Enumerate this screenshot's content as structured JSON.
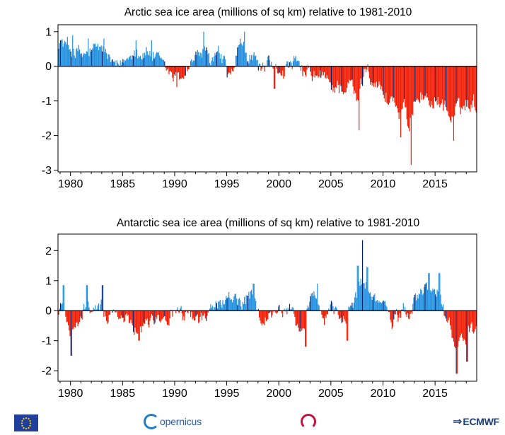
{
  "chart_data": [
    {
      "type": "bar",
      "title": "Arctic sea ice area (millions of sq km) relative to 1981-2010",
      "xlabel": "",
      "ylabel": "",
      "xlim": [
        1978.8,
        2019.0
      ],
      "ylim": [
        -3.05,
        1.2
      ],
      "x_ticks": [
        1980,
        1985,
        1990,
        1995,
        2000,
        2005,
        2010,
        2015
      ],
      "y_ticks": [
        1,
        0,
        -1,
        -2,
        -3
      ],
      "grid": false,
      "legend": "none",
      "colors": {
        "positive": "#1f8fe0",
        "negative": "#f21a00",
        "january": "#00206e"
      },
      "anomaly_anchors": [
        [
          1978.9,
          0.75
        ],
        [
          1979.5,
          0.6
        ],
        [
          1980.0,
          0.5
        ],
        [
          1980.5,
          0.45
        ],
        [
          1981.0,
          0.3
        ],
        [
          1981.5,
          0.35
        ],
        [
          1982.0,
          0.4
        ],
        [
          1982.5,
          0.5
        ],
        [
          1983.0,
          0.55
        ],
        [
          1983.5,
          0.35
        ],
        [
          1984.0,
          0.05
        ],
        [
          1984.5,
          -0.1
        ],
        [
          1985.0,
          0.1
        ],
        [
          1985.5,
          0.25
        ],
        [
          1986.0,
          0.55
        ],
        [
          1986.5,
          0.4
        ],
        [
          1987.0,
          0.35
        ],
        [
          1987.5,
          0.4
        ],
        [
          1988.0,
          0.3
        ],
        [
          1988.5,
          0.1
        ],
        [
          1989.0,
          -0.05
        ],
        [
          1989.5,
          -0.2
        ],
        [
          1990.0,
          -0.3
        ],
        [
          1990.5,
          -0.35
        ],
        [
          1991.0,
          -0.15
        ],
        [
          1991.5,
          0.1
        ],
        [
          1992.0,
          0.25
        ],
        [
          1992.5,
          0.45
        ],
        [
          1993.0,
          0.3
        ],
        [
          1993.5,
          0.15
        ],
        [
          1994.0,
          0.3
        ],
        [
          1994.5,
          0.25
        ],
        [
          1995.0,
          -0.2
        ],
        [
          1995.5,
          -0.3
        ],
        [
          1996.0,
          0.35
        ],
        [
          1996.5,
          0.6
        ],
        [
          1997.0,
          0.2
        ],
        [
          1997.5,
          0.25
        ],
        [
          1998.0,
          0.1
        ],
        [
          1998.5,
          -0.1
        ],
        [
          1999.0,
          0.05
        ],
        [
          1999.5,
          -0.2
        ],
        [
          2000.0,
          -0.1
        ],
        [
          2000.5,
          -0.1
        ],
        [
          2001.0,
          0.0
        ],
        [
          2001.5,
          0.1
        ],
        [
          2002.0,
          -0.1
        ],
        [
          2002.5,
          -0.25
        ],
        [
          2003.0,
          -0.2
        ],
        [
          2003.5,
          -0.3
        ],
        [
          2004.0,
          -0.35
        ],
        [
          2004.5,
          -0.35
        ],
        [
          2005.0,
          -0.55
        ],
        [
          2005.5,
          -0.6
        ],
        [
          2006.0,
          -0.55
        ],
        [
          2006.5,
          -0.65
        ],
        [
          2007.0,
          -0.5
        ],
        [
          2007.5,
          -1.1
        ],
        [
          2008.0,
          -0.4
        ],
        [
          2008.5,
          0.1
        ],
        [
          2009.0,
          -0.4
        ],
        [
          2009.5,
          -0.5
        ],
        [
          2010.0,
          -0.8
        ],
        [
          2010.5,
          -1.0
        ],
        [
          2011.0,
          -0.9
        ],
        [
          2011.5,
          -1.4
        ],
        [
          2012.0,
          -1.1
        ],
        [
          2012.5,
          -2.0
        ],
        [
          2013.0,
          -0.9
        ],
        [
          2013.5,
          -0.8
        ],
        [
          2014.0,
          -0.9
        ],
        [
          2014.5,
          -1.0
        ],
        [
          2015.0,
          -1.0
        ],
        [
          2015.5,
          -1.1
        ],
        [
          2016.0,
          -1.1
        ],
        [
          2016.5,
          -1.6
        ],
        [
          2017.0,
          -1.3
        ],
        [
          2017.5,
          -1.2
        ],
        [
          2018.0,
          -1.1
        ],
        [
          2018.5,
          -1.0
        ],
        [
          2018.9,
          -1.1
        ]
      ],
      "peaks": [
        [
          1979.7,
          0.85
        ],
        [
          1980.2,
          0.9
        ],
        [
          1981.7,
          0.8
        ],
        [
          1983.2,
          0.8
        ],
        [
          1986.3,
          0.75
        ],
        [
          1987.8,
          0.75
        ],
        [
          1990.2,
          -0.6
        ],
        [
          1992.8,
          1.0
        ],
        [
          1996.7,
          1.0
        ],
        [
          1999.6,
          -0.65
        ],
        [
          2007.7,
          -1.85
        ],
        [
          2011.7,
          -2.05
        ],
        [
          2012.7,
          -2.85
        ],
        [
          2016.8,
          -2.15
        ]
      ]
    },
    {
      "type": "bar",
      "title": "Antarctic sea ice area (millions of sq km) relative to 1981-2010",
      "xlabel": "",
      "ylabel": "",
      "xlim": [
        1978.8,
        2019.0
      ],
      "ylim": [
        -2.35,
        2.55
      ],
      "x_ticks": [
        1980,
        1985,
        1990,
        1995,
        2000,
        2005,
        2010,
        2015
      ],
      "y_ticks": [
        2,
        1,
        0,
        -1,
        -2
      ],
      "grid": false,
      "legend": "none",
      "colors": {
        "positive": "#1f8fe0",
        "negative": "#f21a00",
        "january": "#00206e"
      },
      "anomaly_anchors": [
        [
          1978.9,
          -0.1
        ],
        [
          1979.3,
          0.4
        ],
        [
          1979.7,
          -0.3
        ],
        [
          1980.0,
          -0.7
        ],
        [
          1980.5,
          -0.6
        ],
        [
          1981.0,
          -0.3
        ],
        [
          1981.5,
          0.2
        ],
        [
          1982.0,
          0.1
        ],
        [
          1982.5,
          -0.1
        ],
        [
          1983.0,
          0.2
        ],
        [
          1983.5,
          -0.2
        ],
        [
          1984.0,
          -0.1
        ],
        [
          1984.5,
          -0.2
        ],
        [
          1985.0,
          -0.1
        ],
        [
          1985.5,
          -0.3
        ],
        [
          1986.0,
          -0.5
        ],
        [
          1986.5,
          -0.6
        ],
        [
          1987.0,
          -0.4
        ],
        [
          1987.5,
          -0.3
        ],
        [
          1988.0,
          -0.2
        ],
        [
          1988.5,
          -0.1
        ],
        [
          1989.0,
          -0.3
        ],
        [
          1989.5,
          -0.2
        ],
        [
          1990.0,
          -0.15
        ],
        [
          1990.5,
          -0.1
        ],
        [
          1991.0,
          -0.2
        ],
        [
          1991.5,
          -0.1
        ],
        [
          1992.0,
          -0.3
        ],
        [
          1992.5,
          -0.15
        ],
        [
          1993.0,
          -0.35
        ],
        [
          1993.5,
          0.1
        ],
        [
          1994.0,
          0.2
        ],
        [
          1994.5,
          0.25
        ],
        [
          1995.0,
          0.35
        ],
        [
          1995.5,
          0.5
        ],
        [
          1996.0,
          0.3
        ],
        [
          1996.5,
          0.2
        ],
        [
          1997.0,
          0.4
        ],
        [
          1997.5,
          0.5
        ],
        [
          1998.0,
          -0.2
        ],
        [
          1998.5,
          -0.35
        ],
        [
          1999.0,
          -0.2
        ],
        [
          1999.5,
          -0.1
        ],
        [
          2000.0,
          0.1
        ],
        [
          2000.5,
          -0.1
        ],
        [
          2001.0,
          0.2
        ],
        [
          2001.5,
          -0.3
        ],
        [
          2002.0,
          -0.5
        ],
        [
          2002.5,
          -0.6
        ],
        [
          2003.0,
          0.3
        ],
        [
          2003.5,
          0.4
        ],
        [
          2004.0,
          -0.2
        ],
        [
          2004.5,
          -0.3
        ],
        [
          2005.0,
          0.2
        ],
        [
          2005.5,
          0.1
        ],
        [
          2006.0,
          -0.3
        ],
        [
          2006.5,
          -0.5
        ],
        [
          2007.0,
          0.4
        ],
        [
          2007.5,
          0.6
        ],
        [
          2008.0,
          1.0
        ],
        [
          2008.5,
          0.8
        ],
        [
          2009.0,
          0.4
        ],
        [
          2009.5,
          0.3
        ],
        [
          2010.0,
          0.4
        ],
        [
          2010.5,
          -0.2
        ],
        [
          2011.0,
          -0.4
        ],
        [
          2011.5,
          -0.2
        ],
        [
          2012.0,
          0.1
        ],
        [
          2012.5,
          -0.2
        ],
        [
          2013.0,
          0.3
        ],
        [
          2013.5,
          0.5
        ],
        [
          2014.0,
          0.8
        ],
        [
          2014.5,
          0.7
        ],
        [
          2015.0,
          0.6
        ],
        [
          2015.5,
          0.5
        ],
        [
          2016.0,
          -0.3
        ],
        [
          2016.5,
          -0.6
        ],
        [
          2017.0,
          -1.1
        ],
        [
          2017.5,
          -0.9
        ],
        [
          2018.0,
          -0.9
        ],
        [
          2018.5,
          -0.7
        ],
        [
          2018.9,
          -0.8
        ]
      ],
      "peaks": [
        [
          1979.35,
          0.85
        ],
        [
          1980.1,
          -1.5
        ],
        [
          1981.6,
          0.85
        ],
        [
          1983.1,
          0.85
        ],
        [
          1986.6,
          -1.0
        ],
        [
          1997.6,
          0.9
        ],
        [
          2002.6,
          -1.2
        ],
        [
          2003.7,
          0.9
        ],
        [
          2006.6,
          -1.0
        ],
        [
          2007.6,
          1.5
        ],
        [
          2008.05,
          2.35
        ],
        [
          2008.5,
          1.45
        ],
        [
          2014.4,
          1.25
        ],
        [
          2015.4,
          1.25
        ],
        [
          2017.1,
          -2.1
        ],
        [
          2018.1,
          -1.7
        ]
      ]
    }
  ],
  "logos": {
    "copernicus_word": "opernicus",
    "ecmwf_word": "ECMWF"
  }
}
